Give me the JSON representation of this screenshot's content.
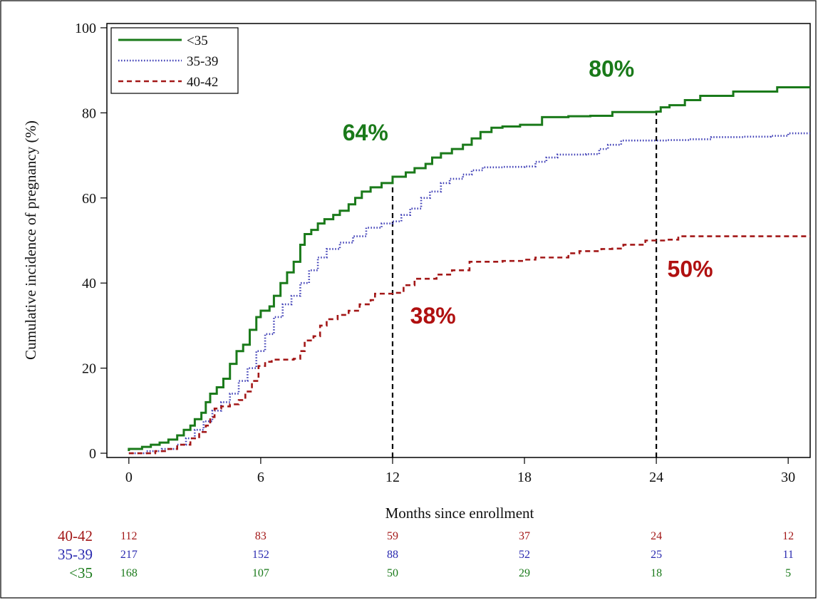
{
  "chart_data": {
    "type": "line",
    "xlabel": "Months since enrollment",
    "ylabel": "Cumulative incidence of pregnancy (%)",
    "xlim": [
      -1,
      31
    ],
    "ylim": [
      -1,
      101
    ],
    "x_ticks": [
      "0",
      "6",
      "12",
      "18",
      "24",
      "30"
    ],
    "y_ticks": [
      "0",
      "20",
      "40",
      "60",
      "80",
      "100"
    ],
    "x_tick_values": [
      0,
      6,
      12,
      18,
      24,
      30
    ],
    "y_tick_values": [
      0,
      20,
      40,
      60,
      80,
      100
    ],
    "grid": false,
    "legend_position": "top-left",
    "series": [
      {
        "name": "<35",
        "color": "#1a7a1a",
        "style": "solid",
        "points": [
          [
            0,
            0.5
          ],
          [
            0,
            1
          ],
          [
            0.6,
            1
          ],
          [
            0.6,
            1.5
          ],
          [
            1,
            1.5
          ],
          [
            1,
            2
          ],
          [
            1.4,
            2
          ],
          [
            1.4,
            2.5
          ],
          [
            1.8,
            2.5
          ],
          [
            1.8,
            3.2
          ],
          [
            2.2,
            3.2
          ],
          [
            2.2,
            4.2
          ],
          [
            2.5,
            4.2
          ],
          [
            2.5,
            5.5
          ],
          [
            2.8,
            6.5
          ],
          [
            3.0,
            8
          ],
          [
            3.3,
            9.5
          ],
          [
            3.5,
            12
          ],
          [
            3.7,
            14
          ],
          [
            4.0,
            15.5
          ],
          [
            4.3,
            17.5
          ],
          [
            4.6,
            21
          ],
          [
            4.9,
            24
          ],
          [
            5.2,
            25.5
          ],
          [
            5.5,
            29
          ],
          [
            5.8,
            32
          ],
          [
            6.0,
            33.5
          ],
          [
            6.4,
            34.5
          ],
          [
            6.6,
            37
          ],
          [
            6.9,
            40
          ],
          [
            7.2,
            42.5
          ],
          [
            7.5,
            45
          ],
          [
            7.8,
            49
          ],
          [
            8.0,
            51.5
          ],
          [
            8.3,
            52.5
          ],
          [
            8.6,
            54
          ],
          [
            8.9,
            55
          ],
          [
            9.3,
            56
          ],
          [
            9.6,
            57
          ],
          [
            10.0,
            58.5
          ],
          [
            10.3,
            60
          ],
          [
            10.6,
            61.5
          ],
          [
            11.0,
            62.5
          ],
          [
            11.5,
            63.5
          ],
          [
            12.0,
            64
          ],
          [
            12.0,
            65
          ],
          [
            12.6,
            66
          ],
          [
            13.0,
            67
          ],
          [
            13.5,
            68
          ],
          [
            13.8,
            69.5
          ],
          [
            14.2,
            70.5
          ],
          [
            14.7,
            71.5
          ],
          [
            15.2,
            72.5
          ],
          [
            15.6,
            74
          ],
          [
            16.0,
            75.5
          ],
          [
            16.5,
            76.5
          ],
          [
            17.0,
            76.8
          ],
          [
            17.8,
            77.2
          ],
          [
            18.8,
            79
          ],
          [
            20.0,
            79.2
          ],
          [
            21.0,
            79.3
          ],
          [
            22.0,
            80.2
          ],
          [
            24.0,
            80.3
          ],
          [
            24.2,
            81.3
          ],
          [
            24.6,
            81.8
          ],
          [
            25.3,
            83
          ],
          [
            26.0,
            84
          ],
          [
            27.5,
            85
          ],
          [
            29.5,
            86
          ],
          [
            31,
            86
          ]
        ]
      },
      {
        "name": "35-39",
        "color": "#3b3bb5",
        "style": "dotted",
        "points": [
          [
            0,
            0
          ],
          [
            0.8,
            0
          ],
          [
            0.8,
            0.5
          ],
          [
            1.5,
            1
          ],
          [
            2.2,
            2
          ],
          [
            2.6,
            3.5
          ],
          [
            3.0,
            5.5
          ],
          [
            3.4,
            7.5
          ],
          [
            3.8,
            10
          ],
          [
            4.2,
            12
          ],
          [
            4.6,
            14
          ],
          [
            5.0,
            17
          ],
          [
            5.4,
            20
          ],
          [
            5.8,
            24
          ],
          [
            6.2,
            28
          ],
          [
            6.6,
            32
          ],
          [
            7.0,
            35
          ],
          [
            7.4,
            37
          ],
          [
            7.8,
            40
          ],
          [
            8.2,
            43
          ],
          [
            8.6,
            46
          ],
          [
            9.0,
            48
          ],
          [
            9.6,
            49.5
          ],
          [
            10.2,
            51
          ],
          [
            10.8,
            53
          ],
          [
            11.5,
            54
          ],
          [
            12.0,
            54.5
          ],
          [
            12.4,
            56
          ],
          [
            12.8,
            57.5
          ],
          [
            13.3,
            60
          ],
          [
            13.7,
            61.5
          ],
          [
            14.2,
            63.5
          ],
          [
            14.6,
            64.5
          ],
          [
            15.2,
            65.5
          ],
          [
            15.6,
            66.5
          ],
          [
            16.1,
            67.2
          ],
          [
            17.0,
            67.3
          ],
          [
            18.0,
            67.4
          ],
          [
            18.5,
            68.5
          ],
          [
            19.0,
            69.5
          ],
          [
            19.5,
            70.2
          ],
          [
            20.8,
            70.3
          ],
          [
            21.4,
            71.5
          ],
          [
            21.8,
            72.5
          ],
          [
            22.4,
            73.5
          ],
          [
            24.5,
            73.6
          ],
          [
            25.5,
            73.8
          ],
          [
            26.5,
            74.3
          ],
          [
            28.0,
            74.4
          ],
          [
            29.2,
            74.6
          ],
          [
            30.0,
            75.2
          ],
          [
            31,
            75.2
          ]
        ]
      },
      {
        "name": "40-42",
        "color": "#a31818",
        "style": "dashed",
        "points": [
          [
            0,
            0
          ],
          [
            1.2,
            0
          ],
          [
            1.2,
            0.5
          ],
          [
            1.8,
            1
          ],
          [
            2.2,
            2
          ],
          [
            2.8,
            3.5
          ],
          [
            3.2,
            5
          ],
          [
            3.5,
            6.5
          ],
          [
            3.7,
            8.5
          ],
          [
            3.9,
            10.5
          ],
          [
            4.2,
            11
          ],
          [
            4.6,
            11.5
          ],
          [
            5.0,
            12.5
          ],
          [
            5.3,
            14.5
          ],
          [
            5.6,
            17
          ],
          [
            5.9,
            20.5
          ],
          [
            6.2,
            21.5
          ],
          [
            6.5,
            22
          ],
          [
            7.5,
            22.2
          ],
          [
            7.8,
            24
          ],
          [
            8.0,
            26.5
          ],
          [
            8.4,
            27.5
          ],
          [
            8.7,
            30
          ],
          [
            9.0,
            31.5
          ],
          [
            9.5,
            32.5
          ],
          [
            10.0,
            33.5
          ],
          [
            10.5,
            35
          ],
          [
            11.0,
            36
          ],
          [
            11.2,
            37.5
          ],
          [
            12.0,
            37.7
          ],
          [
            12.5,
            39.5
          ],
          [
            13.0,
            41
          ],
          [
            14.0,
            42
          ],
          [
            14.7,
            43
          ],
          [
            15.5,
            45
          ],
          [
            17.0,
            45.2
          ],
          [
            18.0,
            45.5
          ],
          [
            18.5,
            46
          ],
          [
            20.0,
            47
          ],
          [
            20.5,
            47.5
          ],
          [
            21.5,
            48
          ],
          [
            22.0,
            48.1
          ],
          [
            22.5,
            49
          ],
          [
            23.5,
            50
          ],
          [
            24.5,
            50.2
          ],
          [
            25.0,
            51
          ],
          [
            27.0,
            51
          ],
          [
            31,
            51
          ]
        ]
      }
    ],
    "reference_lines": [
      {
        "x": 12,
        "y_top": 64,
        "color": "#000000",
        "style": "dashed"
      },
      {
        "x": 24,
        "y_top": 80.3,
        "color": "#000000",
        "style": "dashed"
      }
    ],
    "annotations": [
      {
        "text": "64%",
        "x": 11.8,
        "y": 73.5,
        "color": "#1a7a1a",
        "anchor": "end"
      },
      {
        "text": "80%",
        "x": 23,
        "y": 88.5,
        "color": "#1a7a1a",
        "anchor": "end"
      },
      {
        "text": "38%",
        "x": 12.8,
        "y": 30.5,
        "color": "#b01010",
        "anchor": "start"
      },
      {
        "text": "50%",
        "x": 24.5,
        "y": 41.5,
        "color": "#b01010",
        "anchor": "start"
      }
    ],
    "risk_table": {
      "x_positions": [
        0,
        6,
        12,
        18,
        24,
        30
      ],
      "rows": [
        {
          "label": "40-42",
          "color": "#a31818",
          "values": [
            "112",
            "83",
            "59",
            "37",
            "24",
            "12"
          ]
        },
        {
          "label": "35-39",
          "color": "#2b2bb0",
          "values": [
            "217",
            "152",
            "88",
            "52",
            "25",
            "11"
          ]
        },
        {
          "label": "<35",
          "color": "#1a7a1a",
          "values": [
            "168",
            "107",
            "50",
            "29",
            "18",
            "5"
          ]
        }
      ]
    }
  }
}
